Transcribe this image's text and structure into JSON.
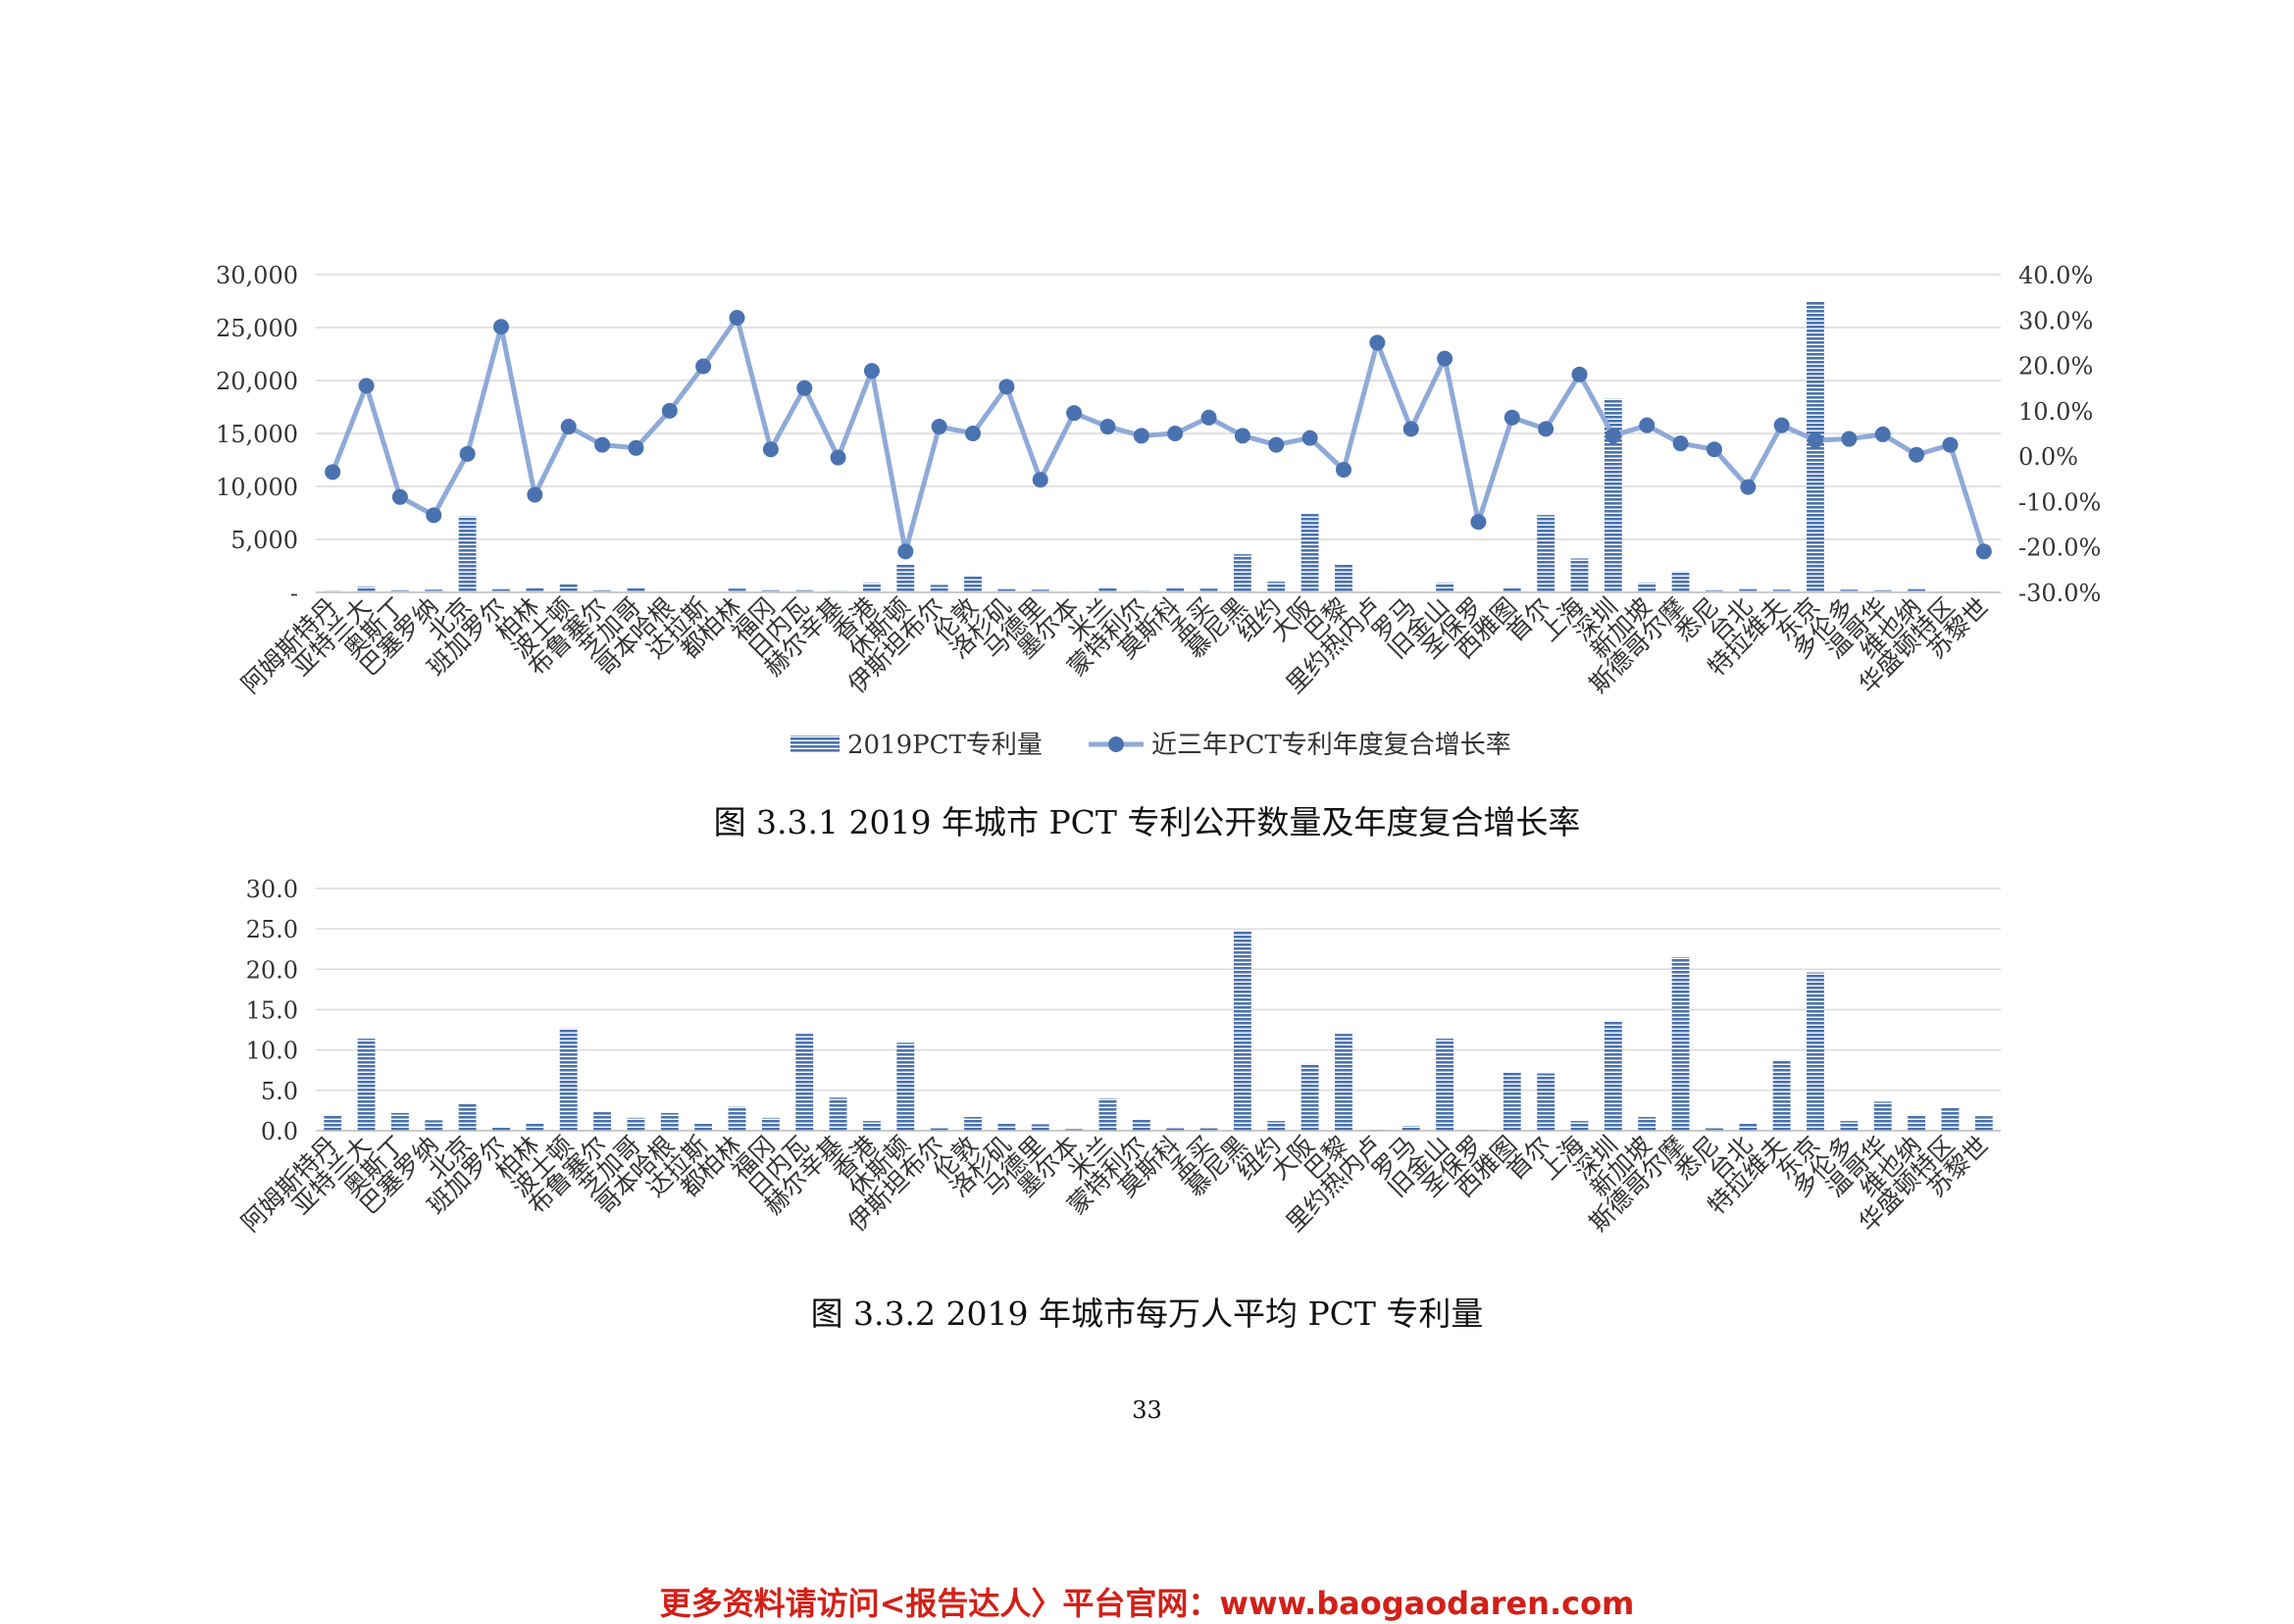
{
  "chart_data": [
    {
      "type": "bar+line",
      "title": "",
      "categories": [
        "阿姆斯特丹",
        "亚特兰大",
        "奥斯丁",
        "巴塞罗纳",
        "北京",
        "班加罗尔",
        "柏林",
        "波士顿",
        "布鲁塞尔",
        "芝加哥",
        "哥本哈根",
        "达拉斯",
        "都柏林",
        "福冈",
        "日内瓦",
        "赫尔辛基",
        "香港",
        "休斯顿",
        "伊斯坦布尔",
        "伦敦",
        "洛杉矶",
        "马德里",
        "墨尔本",
        "米兰",
        "蒙特利尔",
        "莫斯科",
        "孟买",
        "慕尼黑",
        "纽约",
        "大阪",
        "巴黎",
        "里约热内卢",
        "罗马",
        "旧金山",
        "圣保罗",
        "西雅图",
        "首尔",
        "上海",
        "深圳",
        "新加坡",
        "斯德哥尔摩",
        "悉尼",
        "台北",
        "特拉维夫",
        "东京",
        "多伦多",
        "温哥华",
        "维也纳",
        "华盛顿特区",
        "苏黎世"
      ],
      "series": [
        {
          "name": "2019PCT专利量",
          "type": "bar",
          "axis": "left",
          "values": [
            150,
            550,
            200,
            250,
            7200,
            300,
            400,
            800,
            200,
            400,
            100,
            50,
            350,
            200,
            200,
            150,
            900,
            2600,
            700,
            1600,
            300,
            250,
            80,
            500,
            150,
            500,
            350,
            3600,
            1000,
            7400,
            2600,
            100,
            100,
            900,
            80,
            500,
            7300,
            3200,
            18300,
            900,
            2000,
            200,
            300,
            250,
            27500,
            250,
            200,
            300,
            100,
            100
          ]
        },
        {
          "name": "近三年PCT专利年度复合增长率",
          "type": "line",
          "axis": "right",
          "unit": "%",
          "values": [
            -3.5,
            15.5,
            -9.0,
            -13.0,
            0.5,
            28.5,
            -8.5,
            6.5,
            2.5,
            1.8,
            10.0,
            19.8,
            30.5,
            1.5,
            15.0,
            -0.3,
            18.8,
            -21.0,
            6.5,
            5.0,
            15.3,
            -5.2,
            9.5,
            6.5,
            4.5,
            5.0,
            8.5,
            4.5,
            2.5,
            4.0,
            -3.0,
            25.0,
            6.0,
            21.5,
            -14.5,
            8.5,
            6.0,
            18.0,
            4.5,
            6.8,
            2.8,
            1.5,
            -6.8,
            6.8,
            3.5,
            3.8,
            4.8,
            0.3,
            2.5,
            -21.0
          ]
        }
      ],
      "y_left": {
        "min": 0,
        "max": 30000,
        "step": 5000,
        "ticks": [
          "-",
          "5,000",
          "10,000",
          "15,000",
          "20,000",
          "25,000",
          "30,000"
        ]
      },
      "y_right": {
        "min": -30,
        "max": 40,
        "step": 10,
        "ticks": [
          "-30.0%",
          "-20.0%",
          "-10.0%",
          "0.0%",
          "10.0%",
          "20.0%",
          "30.0%",
          "40.0%"
        ]
      },
      "grid": true,
      "legend_position": "bottom",
      "colors": {
        "bar": "#4a72b0",
        "bar_stripe": "#ffffff",
        "line": "#8faad8",
        "marker": "#4a72b0",
        "grid": "#d9d9d9"
      }
    },
    {
      "type": "bar",
      "title": "",
      "categories": [
        "阿姆斯特丹",
        "亚特兰大",
        "奥斯丁",
        "巴塞罗纳",
        "北京",
        "班加罗尔",
        "柏林",
        "波士顿",
        "布鲁塞尔",
        "芝加哥",
        "哥本哈根",
        "达拉斯",
        "都柏林",
        "福冈",
        "日内瓦",
        "赫尔辛基",
        "香港",
        "休斯顿",
        "伊斯坦布尔",
        "伦敦",
        "洛杉矶",
        "马德里",
        "墨尔本",
        "米兰",
        "蒙特利尔",
        "莫斯科",
        "孟买",
        "慕尼黑",
        "纽约",
        "大阪",
        "巴黎",
        "里约热内卢",
        "罗马",
        "旧金山",
        "圣保罗",
        "西雅图",
        "首尔",
        "上海",
        "深圳",
        "新加坡",
        "斯德哥尔摩",
        "悉尼",
        "台北",
        "特拉维夫",
        "东京",
        "多伦多",
        "温哥华",
        "维也纳",
        "华盛顿特区",
        "苏黎世"
      ],
      "values": [
        2.0,
        11.4,
        2.2,
        1.3,
        3.3,
        0.5,
        1.0,
        12.7,
        2.3,
        1.6,
        2.2,
        0.9,
        3.0,
        1.6,
        12.0,
        4.1,
        1.2,
        10.9,
        0.3,
        1.7,
        0.9,
        0.8,
        0.2,
        4.0,
        1.4,
        0.3,
        0.3,
        24.8,
        1.2,
        8.3,
        12.0,
        0.1,
        0.6,
        11.4,
        0.1,
        7.3,
        7.1,
        1.2,
        13.6,
        1.7,
        21.5,
        0.3,
        0.9,
        8.8,
        19.6,
        1.2,
        3.6,
        2.0,
        2.8,
        1.8
      ],
      "y": {
        "min": 0,
        "max": 30,
        "step": 5,
        "ticks": [
          "0.0",
          "5.0",
          "10.0",
          "15.0",
          "20.0",
          "25.0",
          "30.0"
        ]
      },
      "grid": true,
      "colors": {
        "bar": "#4a72b0",
        "bar_stripe": "#ffffff",
        "grid": "#d9d9d9"
      }
    }
  ],
  "captions": {
    "figure1": "图 3.3.1 2019 年城市 PCT 专利公开数量及年度复合增长率",
    "figure2": "图 3.3.2 2019 年城市每万人平均 PCT 专利量"
  },
  "page_number": "33",
  "footer": "更多资料请访问<报告达人〉平台官网：www.baogaodaren.com"
}
